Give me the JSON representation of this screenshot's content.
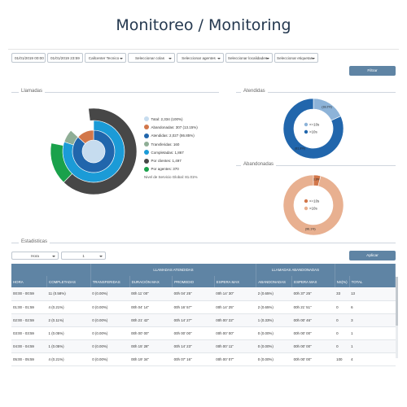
{
  "page_title": "Monitoreo / Monitoring",
  "filters": {
    "date_from": "01/01/2019 00:00",
    "date_to": "01/01/2019 23:59",
    "callcenter": "Callcenter Tecnico",
    "colas": "Seleccionar colas",
    "agentes": "Seleccionar agentes",
    "localidades": "Seleccionar localidades",
    "etiquetas": "Seleccionar etiquetas",
    "filter_button": "Filtrar"
  },
  "sections": {
    "llamadas": "Llamadas",
    "atendidas": "Atendidas",
    "abandonadas": "Abandonadas",
    "estadisticas": "Estadisticas"
  },
  "legend": [
    {
      "label": "Total: 2,334 (100%)",
      "color": "#c6dcef"
    },
    {
      "label": "Abandonadas: 307 (13.15%)",
      "color": "#d2774a"
    },
    {
      "label": "Atendidas: 2,027 (86.85%)",
      "color": "#2166ac"
    },
    {
      "label": "Transferidas: 160",
      "color": "#8fae96"
    },
    {
      "label": "Completadas: 1,867",
      "color": "#1b9bd7"
    },
    {
      "label": "Por clientes: 1,497",
      "color": "#474747"
    },
    {
      "label": "Por agentes: 370",
      "color": "#1aa14b"
    }
  ],
  "nivel_servicio": "Nivel de Servicio Global: 81.01%",
  "chart_data": [
    {
      "type": "pie",
      "title": "Llamadas",
      "rings": [
        {
          "name": "Total",
          "values": [
            2334
          ]
        },
        {
          "name": "Estado",
          "categories": [
            "Atendidas",
            "Abandonadas"
          ],
          "values": [
            2027,
            307
          ]
        },
        {
          "name": "Resultado",
          "categories": [
            "Completadas",
            "Transferidas"
          ],
          "values": [
            1867,
            160
          ]
        },
        {
          "name": "Finalizadas",
          "categories": [
            "Por clientes",
            "Por agentes"
          ],
          "values": [
            1497,
            370
          ]
        }
      ]
    },
    {
      "type": "pie",
      "title": "Atendidas",
      "categories": [
        "<=10s",
        ">10s"
      ],
      "values": [
        369,
        1658
      ],
      "colors": [
        "#8db3d8",
        "#2166ac"
      ],
      "labels_on_chart": [
        "(18.2%)",
        "(81.8%)"
      ]
    },
    {
      "type": "pie",
      "title": "Abandonadas",
      "categories": [
        "<=10s",
        ">10s"
      ],
      "values": [
        12,
        295
      ],
      "colors": [
        "#d2774a",
        "#e8b090"
      ],
      "labels_on_chart": [
        "(3.9%)",
        "(96.1%)"
      ]
    }
  ],
  "stats_controls": {
    "group_by": "Hora",
    "interval": "1",
    "apply_button": "Aplicar"
  },
  "table": {
    "group_headers": {
      "atendidas": "LLAMADAS ATENDIDAS",
      "abandonadas": "LLAMADAS ABANDONADAS"
    },
    "columns": [
      "HORA",
      "COMPLETADAS",
      "TRANSFERIDAS",
      "DURACIÓN MAX",
      "PROMEDIO",
      "ESPERA MAX",
      "ABANDONADAS",
      "ESPERA MAX",
      "NS(%)",
      "TOTAL"
    ],
    "rows": [
      [
        "00:00 - 00:59",
        "11 (0.58%)",
        "0 (0.00%)",
        "00h 11' 00''",
        "00h 04' 25''",
        "00h 14' 30''",
        "2 (0.65%)",
        "00h 37' 25''",
        "33",
        "13"
      ],
      [
        "01:00 - 01:59",
        "4 (0.21%)",
        "0 (0.00%)",
        "00h 04' 14''",
        "00h 16' 57''",
        "00h 14' 25''",
        "2 (0.65%)",
        "00h 21' 51''",
        "0",
        "6"
      ],
      [
        "02:00 - 02:59",
        "2 (0.11%)",
        "0 (0.00%)",
        "00h 21' 42''",
        "00h 14' 27''",
        "00h 00' 22''",
        "1 (0.33%)",
        "00h 00' 46''",
        "0",
        "3"
      ],
      [
        "03:00 - 03:59",
        "1 (0.05%)",
        "0 (0.00%)",
        "00h 00' 00''",
        "00h 00' 00''",
        "00h 00' 00''",
        "0 (0.00%)",
        "00h 00' 00''",
        "0",
        "1"
      ],
      [
        "04:00 - 04:59",
        "1 (0.05%)",
        "0 (0.00%)",
        "00h 15' 28''",
        "00h 14' 23''",
        "00h 00' 11''",
        "0 (0.00%)",
        "00h 00' 00''",
        "0",
        "1"
      ],
      [
        "05:00 - 05:59",
        "4 (0.21%)",
        "0 (0.00%)",
        "00h 19' 34''",
        "00h 07' 16''",
        "00h 00' 07''",
        "0 (0.00%)",
        "00h 00' 00''",
        "100",
        "4"
      ]
    ]
  }
}
